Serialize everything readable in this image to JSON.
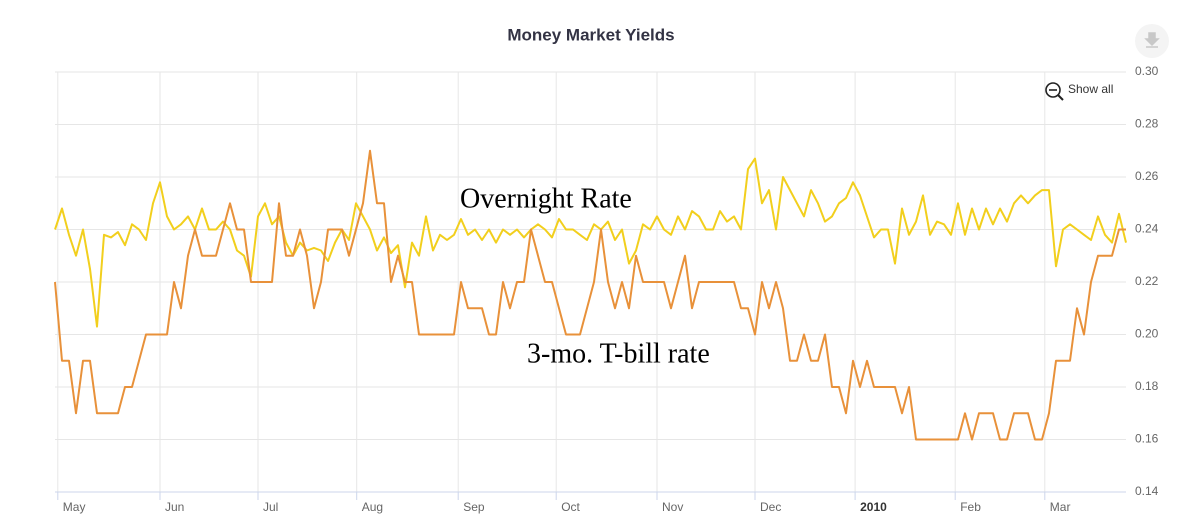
{
  "chart_data": {
    "type": "line",
    "title": "Money Market Yields",
    "ylim": [
      0.14,
      0.3
    ],
    "yticks": [
      {
        "value": 0.3,
        "label": "0.30"
      },
      0.28,
      0.26,
      0.24,
      0.22,
      {
        "value": 0.2,
        "label": "0.20"
      },
      0.18,
      0.16,
      0.14
    ],
    "xlim": [
      0,
      153
    ],
    "xticks": [
      {
        "value": 0.4,
        "label": "May"
      },
      {
        "value": 15,
        "label": "Jun"
      },
      {
        "value": 29,
        "label": "Jul"
      },
      {
        "value": 43.1,
        "label": "Aug"
      },
      {
        "value": 57.6,
        "label": "Sep"
      },
      {
        "value": 71.6,
        "label": "Oct"
      },
      {
        "value": 86,
        "label": "Nov"
      },
      {
        "value": 100,
        "label": "Dec"
      },
      {
        "value": 114.3,
        "label": "2010"
      },
      {
        "value": 128.6,
        "label": "Feb"
      },
      {
        "value": 141.4,
        "label": "Mar"
      }
    ],
    "grid": true,
    "button": "Show all",
    "series": [
      {
        "name": "Overnight Rate",
        "color": "#f2cf1d",
        "values": [
          0.24,
          0.248,
          0.238,
          0.23,
          0.24,
          0.225,
          0.203,
          0.238,
          0.237,
          0.239,
          0.234,
          0.242,
          0.24,
          0.236,
          0.25,
          0.258,
          0.245,
          0.24,
          0.242,
          0.245,
          0.24,
          0.248,
          0.24,
          0.24,
          0.243,
          0.24,
          0.232,
          0.23,
          0.222,
          0.245,
          0.25,
          0.242,
          0.245,
          0.235,
          0.23,
          0.235,
          0.232,
          0.233,
          0.232,
          0.228,
          0.235,
          0.24,
          0.236,
          0.25,
          0.245,
          0.24,
          0.232,
          0.237,
          0.231,
          0.234,
          0.218,
          0.235,
          0.23,
          0.245,
          0.232,
          0.238,
          0.236,
          0.238,
          0.244,
          0.238,
          0.24,
          0.236,
          0.24,
          0.235,
          0.24,
          0.238,
          0.24,
          0.237,
          0.24,
          0.242,
          0.24,
          0.237,
          0.244,
          0.24,
          0.24,
          0.238,
          0.236,
          0.242,
          0.24,
          0.243,
          0.236,
          0.24,
          0.227,
          0.232,
          0.242,
          0.24,
          0.245,
          0.24,
          0.238,
          0.245,
          0.24,
          0.247,
          0.245,
          0.24,
          0.24,
          0.247,
          0.243,
          0.245,
          0.24,
          0.263,
          0.267,
          0.25,
          0.255,
          0.24,
          0.26,
          0.255,
          0.25,
          0.245,
          0.255,
          0.25,
          0.243,
          0.245,
          0.25,
          0.252,
          0.258,
          0.253,
          0.245,
          0.237,
          0.24,
          0.24,
          0.227,
          0.248,
          0.238,
          0.243,
          0.253,
          0.238,
          0.243,
          0.242,
          0.238,
          0.25,
          0.238,
          0.248,
          0.24,
          0.248,
          0.242,
          0.248,
          0.243,
          0.25,
          0.253,
          0.25,
          0.253,
          0.255,
          0.255,
          0.226,
          0.24,
          0.242,
          0.24,
          0.238,
          0.236,
          0.245,
          0.238,
          0.235,
          0.246,
          0.235
        ]
      },
      {
        "name": "3-mo. T-bill rate",
        "color": "#e8913a",
        "values": [
          0.22,
          0.19,
          0.19,
          0.17,
          0.19,
          0.19,
          0.17,
          0.17,
          0.17,
          0.17,
          0.18,
          0.18,
          0.19,
          0.2,
          0.2,
          0.2,
          0.2,
          0.22,
          0.21,
          0.23,
          0.24,
          0.23,
          0.23,
          0.23,
          0.24,
          0.25,
          0.24,
          0.24,
          0.22,
          0.22,
          0.22,
          0.22,
          0.25,
          0.23,
          0.23,
          0.24,
          0.23,
          0.21,
          0.22,
          0.24,
          0.24,
          0.24,
          0.23,
          0.24,
          0.25,
          0.27,
          0.25,
          0.25,
          0.22,
          0.23,
          0.22,
          0.22,
          0.2,
          0.2,
          0.2,
          0.2,
          0.2,
          0.2,
          0.22,
          0.21,
          0.21,
          0.21,
          0.2,
          0.2,
          0.22,
          0.21,
          0.22,
          0.22,
          0.24,
          0.23,
          0.22,
          0.22,
          0.21,
          0.2,
          0.2,
          0.2,
          0.21,
          0.22,
          0.24,
          0.22,
          0.21,
          0.22,
          0.21,
          0.23,
          0.22,
          0.22,
          0.22,
          0.22,
          0.21,
          0.22,
          0.23,
          0.21,
          0.22,
          0.22,
          0.22,
          0.22,
          0.22,
          0.22,
          0.21,
          0.21,
          0.2,
          0.22,
          0.21,
          0.22,
          0.21,
          0.19,
          0.19,
          0.2,
          0.19,
          0.19,
          0.2,
          0.18,
          0.18,
          0.17,
          0.19,
          0.18,
          0.19,
          0.18,
          0.18,
          0.18,
          0.18,
          0.17,
          0.18,
          0.16,
          0.16,
          0.16,
          0.16,
          0.16,
          0.16,
          0.16,
          0.17,
          0.16,
          0.17,
          0.17,
          0.17,
          0.16,
          0.16,
          0.17,
          0.17,
          0.17,
          0.16,
          0.16,
          0.17,
          0.19,
          0.19,
          0.19,
          0.21,
          0.2,
          0.22,
          0.23,
          0.23,
          0.23,
          0.24,
          0.24
        ]
      }
    ]
  }
}
